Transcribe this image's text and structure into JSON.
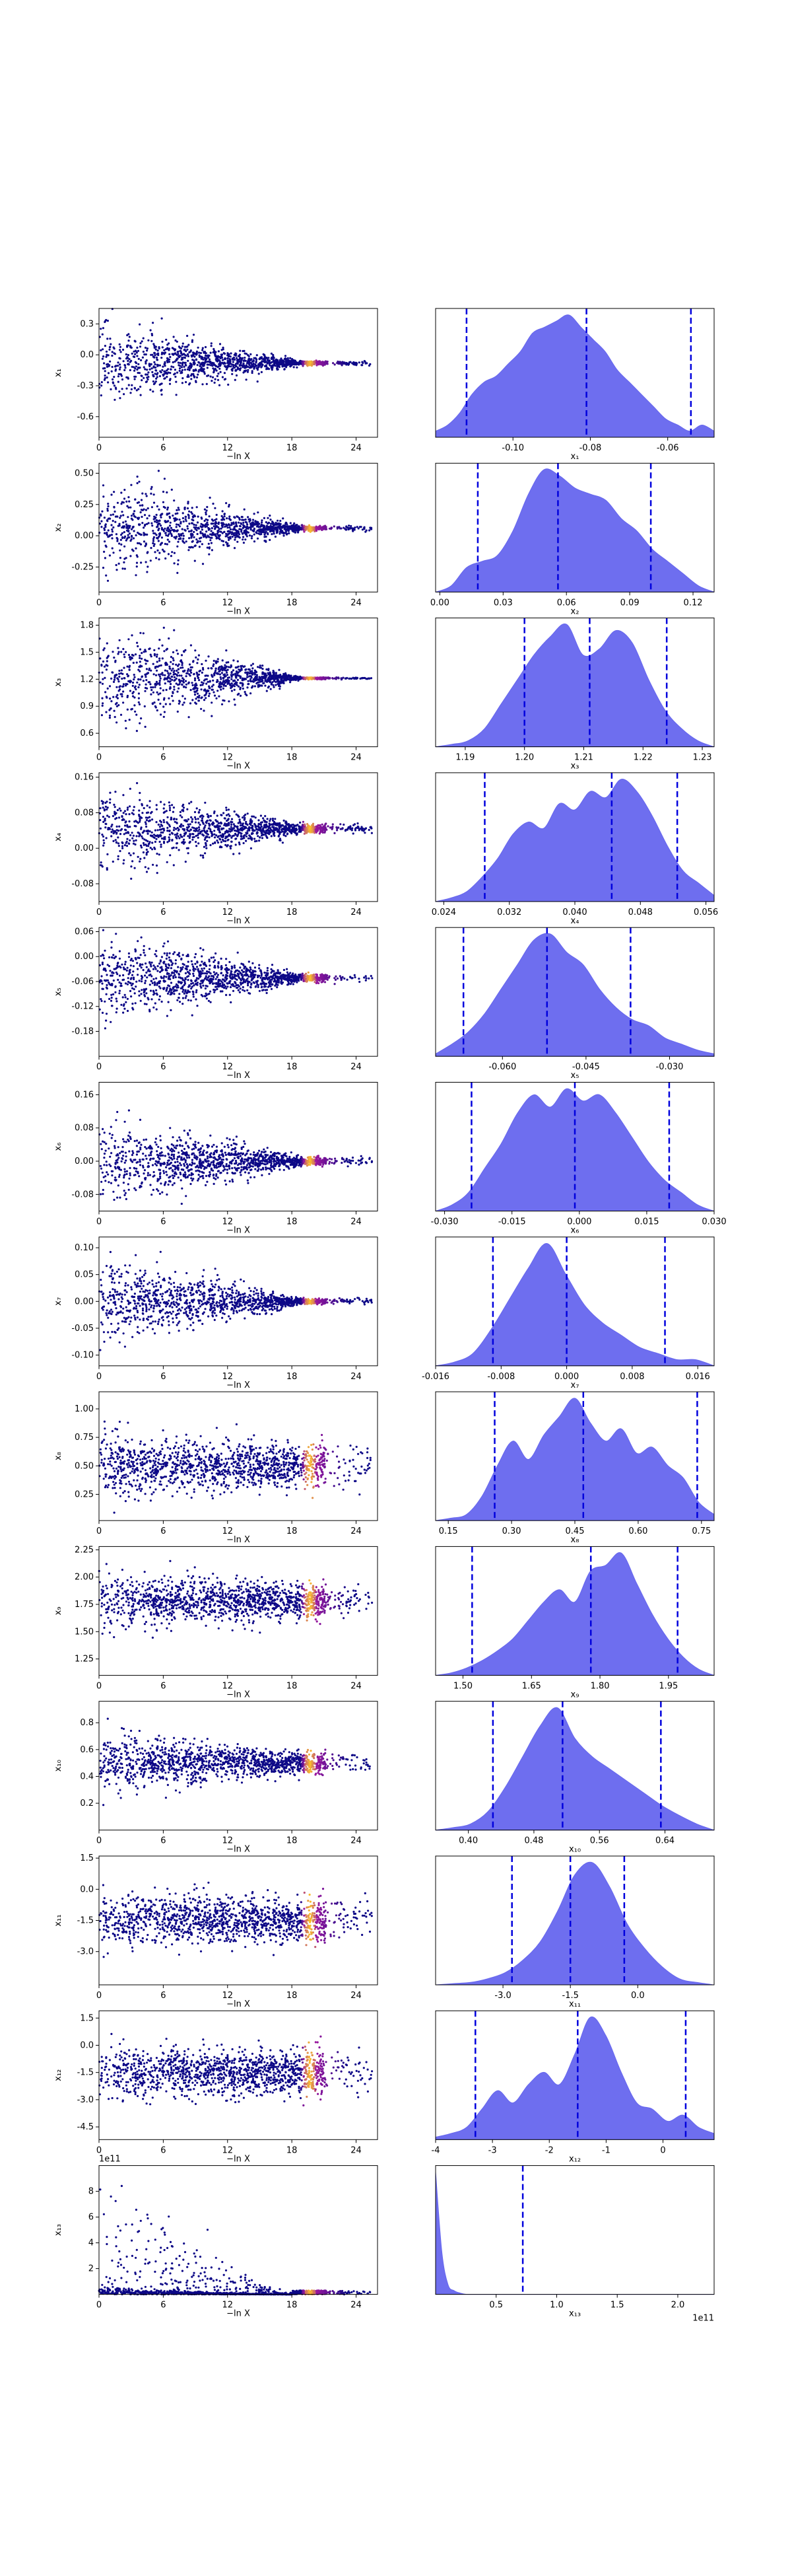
{
  "figure": {
    "scatter_xlabel": "−ln X"
  },
  "colors": {
    "scatter_low": "#0d0887",
    "scatter_mid": "#9c179e",
    "scatter_high": "#fdc328",
    "kde_fill": "#6666ee",
    "quantile_line": "#0000dd"
  },
  "chart_data": [
    {
      "type": "scatter",
      "name": "x1",
      "xlabel": "−ln X",
      "ylabel": "x₁",
      "xlim": [
        0,
        26
      ],
      "ylim": [
        -0.8,
        0.45
      ],
      "xticks": [
        "0",
        "6",
        "12",
        "18",
        "24"
      ],
      "yticks": [
        "0.3",
        "0.0",
        "-0.3",
        "-0.6"
      ],
      "center": -0.08,
      "spread_start": 0.35,
      "spread_end": 0.02
    },
    {
      "type": "area",
      "name": "x1 marginal",
      "xlabel": "x₁",
      "xlim": [
        -0.12,
        -0.048
      ],
      "xticks": [
        "-0.10",
        "-0.08",
        "-0.06"
      ],
      "quantiles": [
        -0.112,
        -0.081,
        -0.054
      ],
      "density": [
        0.05,
        0.1,
        0.2,
        0.35,
        0.45,
        0.5,
        0.6,
        0.7,
        0.85,
        0.9,
        0.95,
        1.0,
        0.9,
        0.8,
        0.7,
        0.55,
        0.45,
        0.35,
        0.25,
        0.15,
        0.1,
        0.05,
        0.1,
        0.05
      ]
    },
    {
      "type": "scatter",
      "name": "x2",
      "xlabel": "−ln X",
      "ylabel": "x₂",
      "xlim": [
        0,
        26
      ],
      "ylim": [
        -0.45,
        0.58
      ],
      "xticks": [
        "0",
        "6",
        "12",
        "18",
        "24"
      ],
      "yticks": [
        "0.50",
        "0.25",
        "0.00",
        "-0.25"
      ],
      "center": 0.06,
      "spread_start": 0.35,
      "spread_end": 0.02
    },
    {
      "type": "area",
      "name": "x2 marginal",
      "xlabel": "x₂",
      "xlim": [
        -0.002,
        0.13
      ],
      "xticks": [
        "0.00",
        "0.03",
        "0.06",
        "0.09",
        "0.12"
      ],
      "quantiles": [
        0.018,
        0.056,
        0.1
      ],
      "density": [
        0.0,
        0.05,
        0.2,
        0.25,
        0.3,
        0.5,
        0.8,
        1.0,
        0.95,
        0.85,
        0.8,
        0.75,
        0.6,
        0.5,
        0.35,
        0.25,
        0.15,
        0.05,
        0.0
      ]
    },
    {
      "type": "scatter",
      "name": "x3",
      "xlabel": "−ln X",
      "ylabel": "x₃",
      "xlim": [
        0,
        26
      ],
      "ylim": [
        0.45,
        1.88
      ],
      "xticks": [
        "0",
        "6",
        "12",
        "18",
        "24"
      ],
      "yticks": [
        "1.8",
        "1.5",
        "1.2",
        "0.9",
        "0.6"
      ],
      "center": 1.21,
      "spread_start": 0.55,
      "spread_end": 0.01
    },
    {
      "type": "area",
      "name": "x3 marginal",
      "xlabel": "x₃",
      "xlim": [
        1.185,
        1.232
      ],
      "xticks": [
        "1.19",
        "1.20",
        "1.21",
        "1.22",
        "1.23"
      ],
      "quantiles": [
        1.2,
        1.211,
        1.224
      ],
      "density": [
        0.0,
        0.02,
        0.05,
        0.15,
        0.35,
        0.55,
        0.75,
        0.9,
        1.0,
        0.75,
        0.8,
        0.95,
        0.85,
        0.55,
        0.3,
        0.15,
        0.05,
        0.0
      ]
    },
    {
      "type": "scatter",
      "name": "x4",
      "xlabel": "−ln X",
      "ylabel": "x₄",
      "xlim": [
        0,
        26
      ],
      "ylim": [
        -0.12,
        0.17
      ],
      "xticks": [
        "0",
        "6",
        "12",
        "18",
        "24"
      ],
      "yticks": [
        "0.16",
        "0.08",
        "0.00",
        "-0.08"
      ],
      "center": 0.044,
      "spread_start": 0.09,
      "spread_end": 0.01
    },
    {
      "type": "area",
      "name": "x4 marginal",
      "xlabel": "x₄",
      "xlim": [
        0.023,
        0.057
      ],
      "xticks": [
        "0.024",
        "0.032",
        "0.040",
        "0.048",
        "0.056"
      ],
      "quantiles": [
        0.029,
        0.0445,
        0.0525
      ],
      "density": [
        0.0,
        0.03,
        0.08,
        0.2,
        0.35,
        0.55,
        0.65,
        0.6,
        0.8,
        0.75,
        0.9,
        0.85,
        1.0,
        0.9,
        0.7,
        0.45,
        0.25,
        0.15,
        0.05
      ]
    },
    {
      "type": "scatter",
      "name": "x5",
      "xlabel": "−ln X",
      "ylabel": "x₅",
      "xlim": [
        0,
        26
      ],
      "ylim": [
        -0.24,
        0.07
      ],
      "xticks": [
        "0",
        "6",
        "12",
        "18",
        "24"
      ],
      "yticks": [
        "0.06",
        "0.00",
        "-0.06",
        "-0.12",
        "-0.18"
      ],
      "center": -0.052,
      "spread_start": 0.1,
      "spread_end": 0.01
    },
    {
      "type": "area",
      "name": "x5 marginal",
      "xlabel": "x₅",
      "xlim": [
        -0.072,
        -0.022
      ],
      "xticks": [
        "-0.060",
        "-0.045",
        "-0.030"
      ],
      "quantiles": [
        -0.067,
        -0.052,
        -0.037
      ],
      "density": [
        0.02,
        0.1,
        0.2,
        0.35,
        0.55,
        0.75,
        0.95,
        1.0,
        0.85,
        0.75,
        0.55,
        0.4,
        0.3,
        0.25,
        0.15,
        0.1,
        0.05,
        0.02
      ]
    },
    {
      "type": "scatter",
      "name": "x6",
      "xlabel": "−ln X",
      "ylabel": "x₆",
      "xlim": [
        0,
        26
      ],
      "ylim": [
        -0.12,
        0.19
      ],
      "xticks": [
        "0",
        "6",
        "12",
        "18",
        "24"
      ],
      "yticks": [
        "0.16",
        "0.08",
        "0.00",
        "-0.08"
      ],
      "center": 0.0,
      "spread_start": 0.1,
      "spread_end": 0.01
    },
    {
      "type": "area",
      "name": "x6 marginal",
      "xlabel": "x₆",
      "xlim": [
        -0.032,
        0.03
      ],
      "xticks": [
        "-0.030",
        "-0.015",
        "0.000",
        "0.015",
        "0.030"
      ],
      "quantiles": [
        -0.024,
        -0.001,
        0.02
      ],
      "density": [
        0.0,
        0.05,
        0.15,
        0.35,
        0.55,
        0.8,
        0.95,
        0.85,
        1.0,
        0.9,
        0.95,
        0.8,
        0.6,
        0.4,
        0.25,
        0.15,
        0.05,
        0.0
      ]
    },
    {
      "type": "scatter",
      "name": "x7",
      "xlabel": "−ln X",
      "ylabel": "x₇",
      "xlim": [
        0,
        26
      ],
      "ylim": [
        -0.12,
        0.12
      ],
      "xticks": [
        "0",
        "6",
        "12",
        "18",
        "24"
      ],
      "yticks": [
        "0.10",
        "0.05",
        "0.00",
        "-0.05",
        "-0.10"
      ],
      "center": 0.0,
      "spread_start": 0.08,
      "spread_end": 0.005
    },
    {
      "type": "area",
      "name": "x7 marginal",
      "xlabel": "x₇",
      "xlim": [
        -0.016,
        0.018
      ],
      "xticks": [
        "-0.016",
        "-0.008",
        "0.000",
        "0.008",
        "0.016"
      ],
      "quantiles": [
        -0.009,
        0.0,
        0.012
      ],
      "density": [
        0.0,
        0.03,
        0.1,
        0.3,
        0.55,
        0.8,
        1.0,
        0.75,
        0.5,
        0.35,
        0.25,
        0.15,
        0.1,
        0.05,
        0.05,
        0.0
      ]
    },
    {
      "type": "scatter",
      "name": "x8",
      "xlabel": "−ln X",
      "ylabel": "x₈",
      "xlim": [
        0,
        26
      ],
      "ylim": [
        0.02,
        1.15
      ],
      "xticks": [
        "0",
        "6",
        "12",
        "18",
        "24"
      ],
      "yticks": [
        "1.00",
        "0.75",
        "0.50",
        "0.25"
      ],
      "center": 0.5,
      "spread_start": 0.28,
      "spread_end": 0.18
    },
    {
      "type": "area",
      "name": "x8 marginal",
      "xlabel": "x₈",
      "xlim": [
        0.12,
        0.78
      ],
      "xticks": [
        "0.15",
        "0.30",
        "0.45",
        "0.60",
        "0.75"
      ],
      "quantiles": [
        0.26,
        0.47,
        0.74
      ],
      "density": [
        0.0,
        0.02,
        0.05,
        0.2,
        0.45,
        0.65,
        0.5,
        0.7,
        0.85,
        1.0,
        0.8,
        0.65,
        0.75,
        0.55,
        0.6,
        0.45,
        0.35,
        0.15,
        0.05
      ]
    },
    {
      "type": "scatter",
      "name": "x9",
      "xlabel": "−ln X",
      "ylabel": "x₉",
      "xlim": [
        0,
        26
      ],
      "ylim": [
        1.1,
        2.28
      ],
      "xticks": [
        "0",
        "6",
        "12",
        "18",
        "24"
      ],
      "yticks": [
        "2.25",
        "2.00",
        "1.75",
        "1.50",
        "1.25"
      ],
      "center": 1.78,
      "spread_start": 0.25,
      "spread_end": 0.15
    },
    {
      "type": "area",
      "name": "x9 marginal",
      "xlabel": "x₉",
      "xlim": [
        1.44,
        2.05
      ],
      "xticks": [
        "1.50",
        "1.65",
        "1.80",
        "1.95"
      ],
      "quantiles": [
        1.52,
        1.78,
        1.97
      ],
      "density": [
        0.0,
        0.02,
        0.06,
        0.12,
        0.2,
        0.3,
        0.45,
        0.6,
        0.7,
        0.6,
        0.85,
        0.9,
        1.0,
        0.75,
        0.5,
        0.3,
        0.15,
        0.05,
        0.0
      ]
    },
    {
      "type": "scatter",
      "name": "x10",
      "xlabel": "−ln X",
      "ylabel": "x₁₀",
      "xlim": [
        0,
        26
      ],
      "ylim": [
        0.0,
        0.96
      ],
      "xticks": [
        "0",
        "6",
        "12",
        "18",
        "24"
      ],
      "yticks": [
        "0.8",
        "0.6",
        "0.4",
        "0.2"
      ],
      "center": 0.5,
      "spread_start": 0.22,
      "spread_end": 0.08
    },
    {
      "type": "area",
      "name": "x10 marginal",
      "xlabel": "x₁₀",
      "xlim": [
        0.36,
        0.7
      ],
      "xticks": [
        "0.40",
        "0.48",
        "0.56",
        "0.64"
      ],
      "quantiles": [
        0.43,
        0.515,
        0.635
      ],
      "density": [
        0.0,
        0.02,
        0.05,
        0.15,
        0.35,
        0.6,
        0.85,
        1.0,
        0.75,
        0.6,
        0.5,
        0.4,
        0.3,
        0.2,
        0.12,
        0.05,
        0.0
      ]
    },
    {
      "type": "scatter",
      "name": "x11",
      "xlabel": "−ln X",
      "ylabel": "x₁₁",
      "xlim": [
        0,
        26
      ],
      "ylim": [
        -4.6,
        1.6
      ],
      "xticks": [
        "0",
        "6",
        "12",
        "18",
        "24"
      ],
      "yticks": [
        "1.5",
        "0.0",
        "-1.5",
        "-3.0"
      ],
      "center": -1.5,
      "spread_start": 1.3,
      "spread_end": 1.0
    },
    {
      "type": "area",
      "name": "x11 marginal",
      "xlabel": "x₁₁",
      "xlim": [
        -4.5,
        1.7
      ],
      "xticks": [
        "-3.0",
        "-1.5",
        "0.0"
      ],
      "quantiles": [
        -2.8,
        -1.5,
        -0.3
      ],
      "density": [
        0.0,
        0.01,
        0.02,
        0.05,
        0.1,
        0.2,
        0.35,
        0.6,
        0.9,
        1.0,
        0.8,
        0.5,
        0.3,
        0.15,
        0.05,
        0.02,
        0.0
      ]
    },
    {
      "type": "scatter",
      "name": "x12",
      "xlabel": "−ln X",
      "ylabel": "x₁₂",
      "xlim": [
        0,
        26
      ],
      "ylim": [
        -5.2,
        1.9
      ],
      "xticks": [
        "0",
        "6",
        "12",
        "18",
        "24"
      ],
      "yticks": [
        "1.5",
        "0.0",
        "-1.5",
        "-3.0",
        "-4.5"
      ],
      "center": -1.5,
      "spread_start": 1.4,
      "spread_end": 1.2
    },
    {
      "type": "area",
      "name": "x12 marginal",
      "xlabel": "x₁₂",
      "xlim": [
        -4.0,
        0.9
      ],
      "xticks": [
        "-4",
        "-3",
        "-2",
        "-1",
        "0"
      ],
      "quantiles": [
        -3.3,
        -1.5,
        0.4
      ],
      "density": [
        0.02,
        0.05,
        0.1,
        0.25,
        0.4,
        0.3,
        0.45,
        0.55,
        0.45,
        0.7,
        1.0,
        0.85,
        0.55,
        0.3,
        0.25,
        0.15,
        0.2,
        0.1,
        0.05
      ]
    },
    {
      "type": "scatter",
      "name": "x13",
      "xlabel": "−ln X",
      "ylabel": "x₁₃",
      "xlim": [
        0,
        26
      ],
      "ylim": [
        0,
        10
      ],
      "xticks": [
        "0",
        "6",
        "12",
        "18",
        "24"
      ],
      "yticks": [
        "8",
        "6",
        "4",
        "2"
      ],
      "offset_text": "1e11",
      "center": 0.1,
      "spread_start": 6.0,
      "spread_end": 0.0,
      "skewed": true
    },
    {
      "type": "area",
      "name": "x13 marginal",
      "xlabel": "x₁₃",
      "xlim": [
        0,
        2.3
      ],
      "xticks": [
        "0.5",
        "1.0",
        "1.5",
        "2.0"
      ],
      "offset_text": "1e11",
      "quantiles": [
        0.72
      ],
      "density": [
        1.0,
        0.35,
        0.08,
        0.03,
        0.01,
        0.0,
        0.0,
        0.0,
        0.0,
        0.0,
        0.0,
        0.0,
        0.0,
        0.0,
        0.0,
        0.0,
        0.0,
        0.0,
        0.0,
        0.0,
        0.0,
        0.0,
        0.0,
        0.0,
        0.0,
        0.0,
        0.0,
        0.0,
        0.0,
        0.0,
        0.0,
        0.0,
        0.0,
        0.0,
        0.0,
        0.0,
        0.0,
        0.0,
        0.0,
        0.0,
        0.0,
        0.0,
        0.0,
        0.0,
        0.0,
        0.0
      ]
    }
  ]
}
